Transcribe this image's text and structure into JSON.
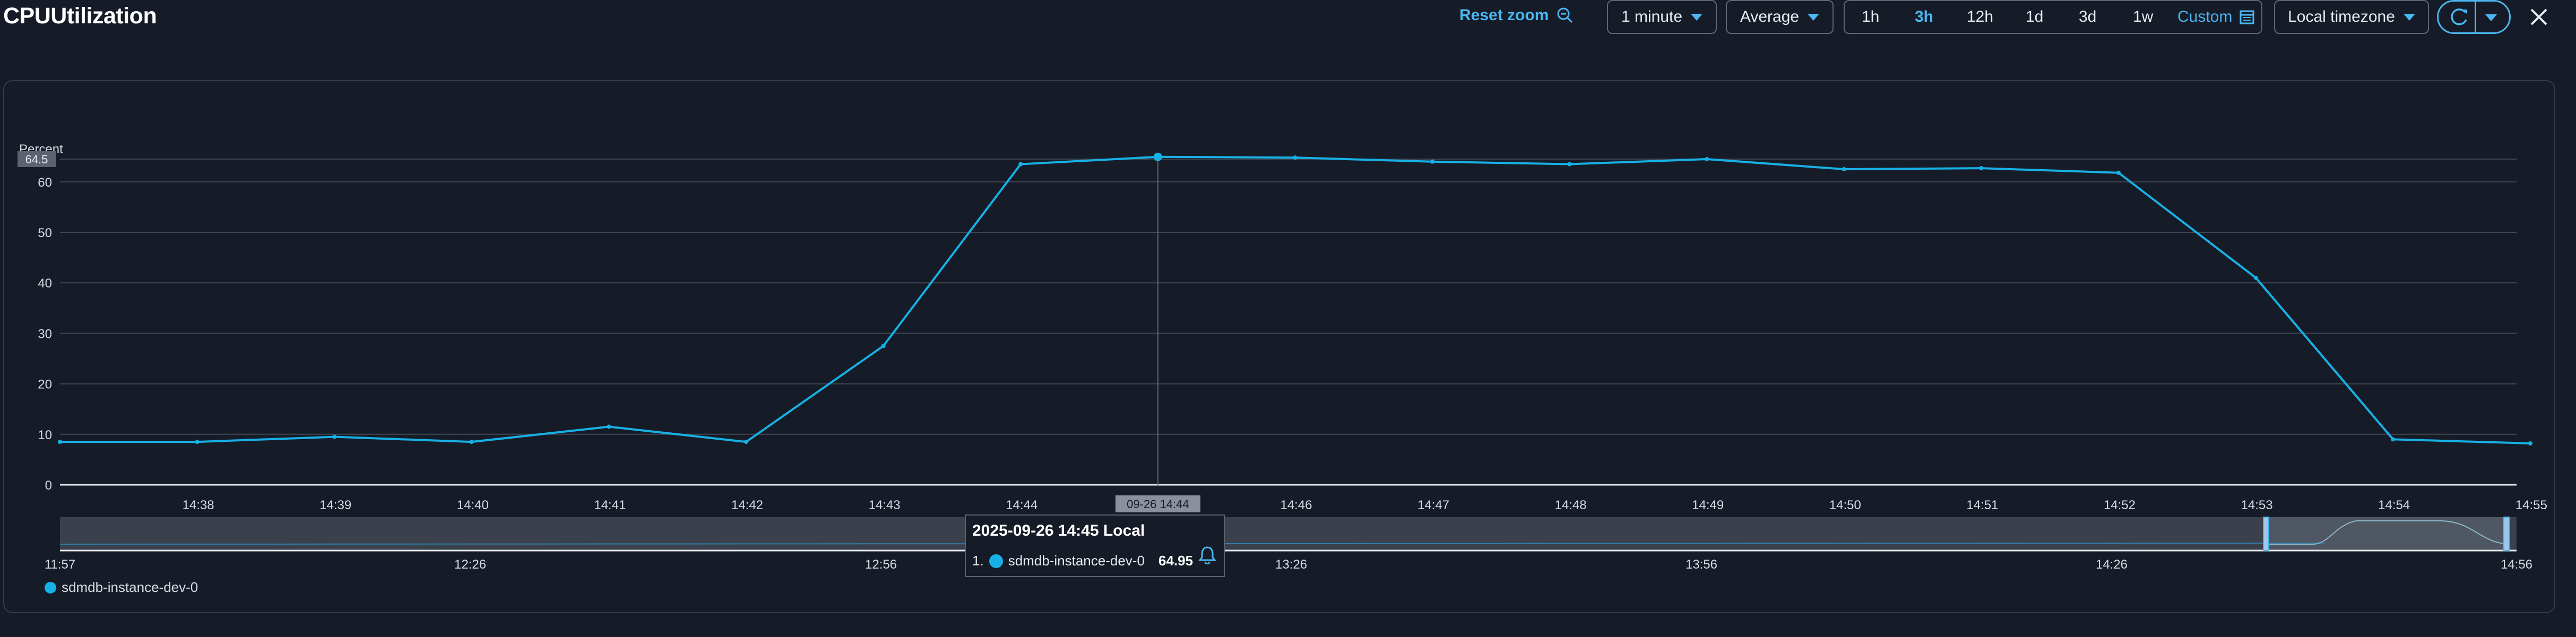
{
  "header": {
    "title": "CPUUtilization",
    "reset_zoom": "Reset zoom",
    "period": "1 minute",
    "statistic": "Average",
    "ranges": [
      "1h",
      "3h",
      "12h",
      "1d",
      "3d",
      "1w"
    ],
    "active_range": "3h",
    "custom_label": "Custom",
    "timezone": "Local timezone"
  },
  "accent_color": "#17b1e6",
  "link_color": "#4ab7f3",
  "chart_data": {
    "type": "line",
    "ylabel": "Percent",
    "ylim": [
      0,
      64.5
    ],
    "y_ticks": [
      0,
      10,
      20,
      30,
      40,
      50,
      60
    ],
    "y_max_badge": "64.5",
    "x": [
      "14:37",
      "14:38",
      "14:39",
      "14:40",
      "14:41",
      "14:42",
      "14:43",
      "14:44",
      "14:45",
      "14:46",
      "14:47",
      "14:48",
      "14:49",
      "14:50",
      "14:51",
      "14:52",
      "14:53",
      "14:54",
      "14:55"
    ],
    "x_tick_labels": [
      "14:38",
      "14:39",
      "14:40",
      "14:41",
      "14:42",
      "14:43",
      "14:44",
      "14:45",
      "14:46",
      "14:47",
      "14:48",
      "14:49",
      "14:50",
      "14:51",
      "14:52",
      "14:53",
      "14:54",
      "14:55"
    ],
    "hover_badge": "09-26 14:44",
    "series": [
      {
        "name": "sdmdb-instance-dev-0",
        "values": [
          8.5,
          8.5,
          9.5,
          8.5,
          11.5,
          8.5,
          27.5,
          63.5,
          64.95,
          64.8,
          64.0,
          63.5,
          64.5,
          62.5,
          62.7,
          61.8,
          41.0,
          9.0,
          8.2
        ]
      }
    ],
    "grid": true,
    "legend_placement": "bottom-left",
    "navigator": {
      "tick_labels": [
        "11:57",
        "12:26",
        "12:56",
        "13:26",
        "13:56",
        "14:26",
        "14:56"
      ]
    }
  },
  "tooltip": {
    "title": "2025-09-26 14:45 Local",
    "index": "1.",
    "series_name": "sdmdb-instance-dev-0",
    "value": "64.95",
    "bell_icon": "bell-icon"
  },
  "legend": {
    "label": "sdmdb-instance-dev-0"
  }
}
